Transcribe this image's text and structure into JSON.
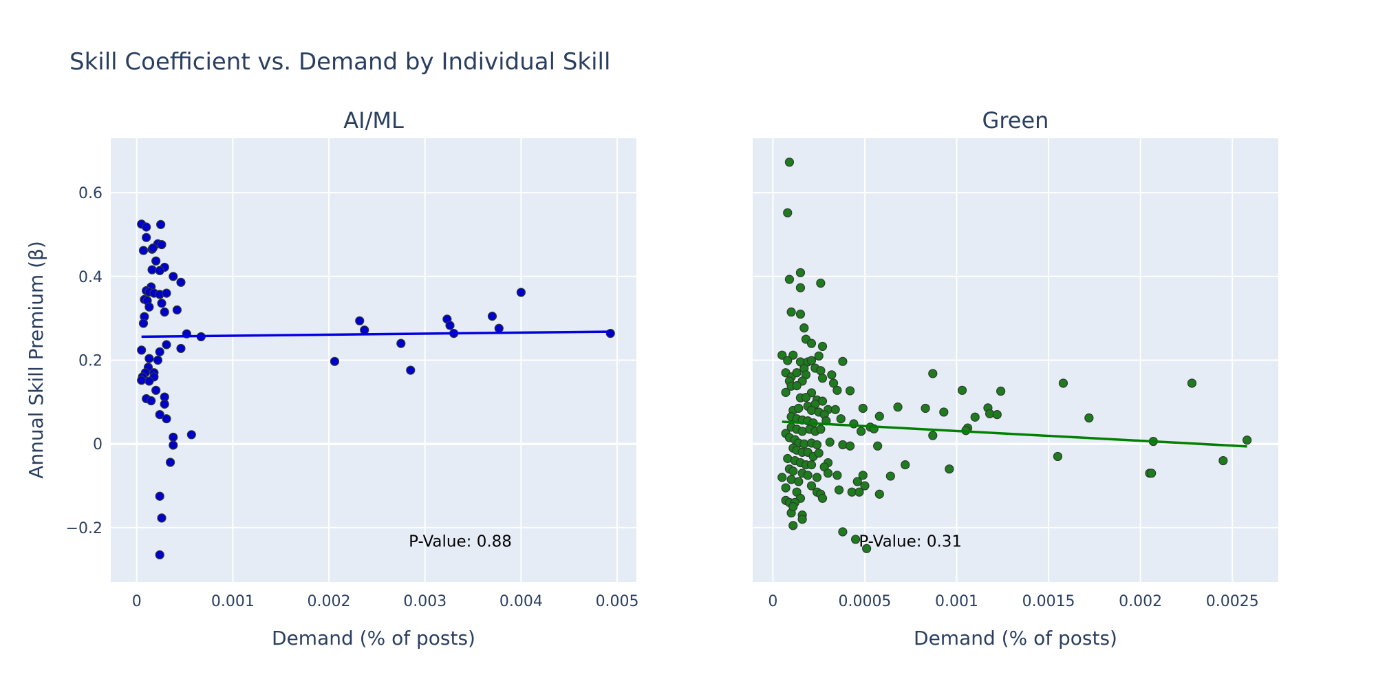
{
  "figure_title": "Skill Coefficient vs. Demand by Individual Skill",
  "ylabel": "Annual Skill Premium (β)",
  "chart_data": [
    {
      "type": "scatter",
      "title": "AI/ML",
      "xlabel": "Demand (% of posts)",
      "ylabel": "Annual Skill Premium (β)",
      "xlim": [
        -0.00027,
        0.0052
      ],
      "ylim": [
        -0.33,
        0.73
      ],
      "xticks": [
        0,
        0.001,
        0.002,
        0.003,
        0.004,
        0.005
      ],
      "xtick_labels": [
        "0",
        "0.001",
        "0.002",
        "0.003",
        "0.004",
        "0.005"
      ],
      "yticks": [
        -0.2,
        0,
        0.2,
        0.4,
        0.6
      ],
      "ytick_labels": [
        "−0.2",
        "0",
        "0.2",
        "0.4",
        "0.6"
      ],
      "grid": true,
      "marker_color": "#0000cd",
      "line_color": "#0000e0",
      "annotation": "P-Value: 0.88",
      "trend": {
        "x": [
          5e-05,
          0.0049
        ],
        "y": [
          0.256,
          0.268
        ]
      },
      "points": [
        [
          5e-05,
          0.525
        ],
        [
          0.0001,
          0.518
        ],
        [
          0.00025,
          0.524
        ],
        [
          0.0001,
          0.493
        ],
        [
          0.00022,
          0.478
        ],
        [
          0.00026,
          0.476
        ],
        [
          0.00016,
          0.465
        ],
        [
          7e-05,
          0.462
        ],
        [
          0.00017,
          0.468
        ],
        [
          0.0002,
          0.437
        ],
        [
          0.00029,
          0.422
        ],
        [
          0.00016,
          0.416
        ],
        [
          0.00024,
          0.414
        ],
        [
          0.00038,
          0.4
        ],
        [
          0.00046,
          0.386
        ],
        [
          0.00015,
          0.375
        ],
        [
          0.0001,
          0.366
        ],
        [
          0.00013,
          0.363
        ],
        [
          0.00018,
          0.36
        ],
        [
          0.00024,
          0.357
        ],
        [
          0.00031,
          0.36
        ],
        [
          8e-05,
          0.345
        ],
        [
          0.00011,
          0.342
        ],
        [
          0.00026,
          0.336
        ],
        [
          0.00013,
          0.327
        ],
        [
          0.00042,
          0.32
        ],
        [
          0.00029,
          0.315
        ],
        [
          8e-05,
          0.304
        ],
        [
          7e-05,
          0.288
        ],
        [
          0.00052,
          0.263
        ],
        [
          0.00067,
          0.256
        ],
        [
          0.00031,
          0.237
        ],
        [
          0.00046,
          0.228
        ],
        [
          5e-05,
          0.224
        ],
        [
          0.00024,
          0.22
        ],
        [
          0.00013,
          0.204
        ],
        [
          0.00022,
          0.2
        ],
        [
          0.00012,
          0.183
        ],
        [
          9e-05,
          0.17
        ],
        [
          0.00018,
          0.17
        ],
        [
          6e-05,
          0.16
        ],
        [
          0.00018,
          0.16
        ],
        [
          5e-05,
          0.152
        ],
        [
          0.00013,
          0.15
        ],
        [
          0.0002,
          0.128
        ],
        [
          0.00029,
          0.112
        ],
        [
          0.0001,
          0.108
        ],
        [
          0.00015,
          0.103
        ],
        [
          0.00029,
          0.095
        ],
        [
          0.00024,
          0.07
        ],
        [
          0.00031,
          0.06
        ],
        [
          0.00038,
          0.016
        ],
        [
          0.00057,
          0.022
        ],
        [
          0.00038,
          -0.003
        ],
        [
          0.00035,
          -0.044
        ],
        [
          0.00024,
          -0.125
        ],
        [
          0.00026,
          -0.177
        ],
        [
          0.00024,
          -0.265
        ],
        [
          0.00206,
          0.197
        ],
        [
          0.00232,
          0.294
        ],
        [
          0.00237,
          0.272
        ],
        [
          0.00275,
          0.24
        ],
        [
          0.00285,
          0.176
        ],
        [
          0.00323,
          0.298
        ],
        [
          0.00326,
          0.283
        ],
        [
          0.0033,
          0.264
        ],
        [
          0.0037,
          0.305
        ],
        [
          0.00377,
          0.276
        ],
        [
          0.004,
          0.362
        ],
        [
          0.00493,
          0.264
        ]
      ]
    },
    {
      "type": "scatter",
      "title": "Green",
      "xlabel": "Demand (% of posts)",
      "ylabel": "",
      "xlim": [
        -0.00011,
        0.00275
      ],
      "ylim": [
        -0.33,
        0.73
      ],
      "xticks": [
        0,
        0.0005,
        0.001,
        0.0015,
        0.002,
        0.0025
      ],
      "xtick_labels": [
        "0",
        "0.0005",
        "0.001",
        "0.0015",
        "0.002",
        "0.0025"
      ],
      "yticks": [
        -0.2,
        0,
        0.2,
        0.4,
        0.6
      ],
      "ytick_labels": [
        "−0.2",
        "0",
        "0.2",
        "0.4",
        "0.6"
      ],
      "grid": true,
      "marker_color": "#1e7b1e",
      "line_color": "#008000",
      "annotation": "P-Value: 0.31",
      "trend": {
        "x": [
          5e-05,
          0.00258
        ],
        "y": [
          0.053,
          -0.006
        ]
      },
      "points": [
        [
          9e-05,
          0.673
        ],
        [
          8e-05,
          0.552
        ],
        [
          0.00015,
          0.409
        ],
        [
          9e-05,
          0.393
        ],
        [
          0.00026,
          0.384
        ],
        [
          0.00015,
          0.373
        ],
        [
          0.0001,
          0.315
        ],
        [
          0.00015,
          0.31
        ],
        [
          0.00017,
          0.277
        ],
        [
          0.00018,
          0.25
        ],
        [
          0.00021,
          0.24
        ],
        [
          0.00027,
          0.233
        ],
        [
          5e-05,
          0.212
        ],
        [
          0.00011,
          0.212
        ],
        [
          0.00025,
          0.21
        ],
        [
          8e-05,
          0.199
        ],
        [
          0.00015,
          0.196
        ],
        [
          0.00019,
          0.196
        ],
        [
          0.00021,
          0.199
        ],
        [
          0.00038,
          0.197
        ],
        [
          7e-05,
          0.17
        ],
        [
          0.0001,
          0.16
        ],
        [
          0.00013,
          0.17
        ],
        [
          0.00017,
          0.18
        ],
        [
          0.00023,
          0.181
        ],
        [
          0.00026,
          0.175
        ],
        [
          0.00032,
          0.165
        ],
        [
          0.00018,
          0.165
        ],
        [
          9e-05,
          0.15
        ],
        [
          0.00016,
          0.15
        ],
        [
          0.00027,
          0.157
        ],
        [
          0.00033,
          0.145
        ],
        [
          0.0001,
          0.138
        ],
        [
          0.00013,
          0.139
        ],
        [
          0.00035,
          0.128
        ],
        [
          0.00042,
          0.127
        ],
        [
          7e-05,
          0.123
        ],
        [
          0.00021,
          0.122
        ],
        [
          0.00015,
          0.11
        ],
        [
          0.00018,
          0.111
        ],
        [
          0.00024,
          0.105
        ],
        [
          0.00027,
          0.102
        ],
        [
          0.00019,
          0.09
        ],
        [
          0.00023,
          0.095
        ],
        [
          0.0003,
          0.082
        ],
        [
          0.00034,
          0.082
        ],
        [
          0.00011,
          0.08
        ],
        [
          0.00014,
          0.085
        ],
        [
          0.00021,
          0.08
        ],
        [
          0.00025,
          0.076
        ],
        [
          0.00028,
          0.07
        ],
        [
          0.00037,
          0.06
        ],
        [
          0.0001,
          0.065
        ],
        [
          0.00013,
          0.06
        ],
        [
          0.00016,
          0.057
        ],
        [
          0.00019,
          0.055
        ],
        [
          0.00022,
          0.05
        ],
        [
          0.00029,
          0.055
        ],
        [
          0.00044,
          0.048
        ],
        [
          0.00049,
          0.085
        ],
        [
          0.00058,
          0.066
        ],
        [
          0.00068,
          0.088
        ],
        [
          0.00083,
          0.085
        ],
        [
          0.00087,
          0.168
        ],
        [
          0.00093,
          0.076
        ],
        [
          0.00103,
          0.128
        ],
        [
          0.0011,
          0.064
        ],
        [
          0.00117,
          0.086
        ],
        [
          0.00118,
          0.072
        ],
        [
          0.00122,
          0.07
        ],
        [
          0.00124,
          0.126
        ],
        [
          0.00158,
          0.145
        ],
        [
          0.00172,
          0.062
        ],
        [
          0.00228,
          0.145
        ],
        [
          0.00207,
          0.006
        ],
        [
          0.00258,
          0.009
        ],
        [
          0.00106,
          0.038
        ],
        [
          0.00105,
          0.032
        ],
        [
          0.00087,
          0.02
        ],
        [
          0.00053,
          0.04
        ],
        [
          0.00055,
          0.036
        ],
        [
          0.00048,
          0.03
        ],
        [
          0.0001,
          0.04
        ],
        [
          0.00013,
          0.035
        ],
        [
          0.00016,
          0.03
        ],
        [
          0.0002,
          0.035
        ],
        [
          0.00023,
          0.03
        ],
        [
          0.00026,
          0.035
        ],
        [
          7e-05,
          0.025
        ],
        [
          9e-05,
          0.015
        ],
        [
          0.00012,
          0.01
        ],
        [
          0.00014,
          0.002
        ],
        [
          0.00017,
          0.0
        ],
        [
          0.00021,
          0.002
        ],
        [
          0.00024,
          -0.002
        ],
        [
          0.00031,
          0.004
        ],
        [
          0.00038,
          -0.002
        ],
        [
          0.00042,
          -0.005
        ],
        [
          0.00057,
          -0.005
        ],
        [
          0.00011,
          -0.01
        ],
        [
          0.00013,
          -0.015
        ],
        [
          0.00016,
          -0.02
        ],
        [
          0.00019,
          -0.02
        ],
        [
          0.00022,
          -0.03
        ],
        [
          0.00025,
          -0.022
        ],
        [
          0.0003,
          -0.045
        ],
        [
          8e-05,
          -0.035
        ],
        [
          0.00012,
          -0.04
        ],
        [
          0.00015,
          -0.045
        ],
        [
          0.00018,
          -0.05
        ],
        [
          0.00021,
          -0.05
        ],
        [
          0.00028,
          -0.055
        ],
        [
          9e-05,
          -0.06
        ],
        [
          0.00011,
          -0.065
        ],
        [
          0.00016,
          -0.07
        ],
        [
          0.00019,
          -0.075
        ],
        [
          0.00024,
          -0.08
        ],
        [
          0.0003,
          -0.07
        ],
        [
          0.00035,
          -0.075
        ],
        [
          0.00049,
          -0.075
        ],
        [
          0.00072,
          -0.05
        ],
        [
          0.00064,
          -0.077
        ],
        [
          0.00096,
          -0.06
        ],
        [
          0.00155,
          -0.03
        ],
        [
          5e-05,
          -0.08
        ],
        [
          0.0001,
          -0.085
        ],
        [
          0.00014,
          -0.09
        ],
        [
          0.00021,
          -0.1
        ],
        [
          0.00024,
          -0.115
        ],
        [
          0.00046,
          -0.09
        ],
        [
          0.0005,
          -0.1
        ],
        [
          7e-05,
          -0.105
        ],
        [
          0.00013,
          -0.115
        ],
        [
          0.00026,
          -0.12
        ],
        [
          0.00036,
          -0.11
        ],
        [
          0.00043,
          -0.115
        ],
        [
          0.00047,
          -0.115
        ],
        [
          0.00058,
          -0.12
        ],
        [
          0.00015,
          -0.13
        ],
        [
          0.00027,
          -0.13
        ],
        [
          7e-05,
          -0.135
        ],
        [
          9e-05,
          -0.14
        ],
        [
          0.00012,
          -0.14
        ],
        [
          0.0001,
          -0.165
        ],
        [
          0.00016,
          -0.17
        ],
        [
          0.00011,
          -0.15
        ],
        [
          0.00016,
          -0.18
        ],
        [
          0.00011,
          -0.195
        ],
        [
          0.00038,
          -0.21
        ],
        [
          0.00045,
          -0.228
        ],
        [
          0.00051,
          -0.25
        ],
        [
          0.00205,
          -0.07
        ],
        [
          0.00206,
          -0.07
        ],
        [
          0.00245,
          -0.04
        ]
      ]
    }
  ]
}
